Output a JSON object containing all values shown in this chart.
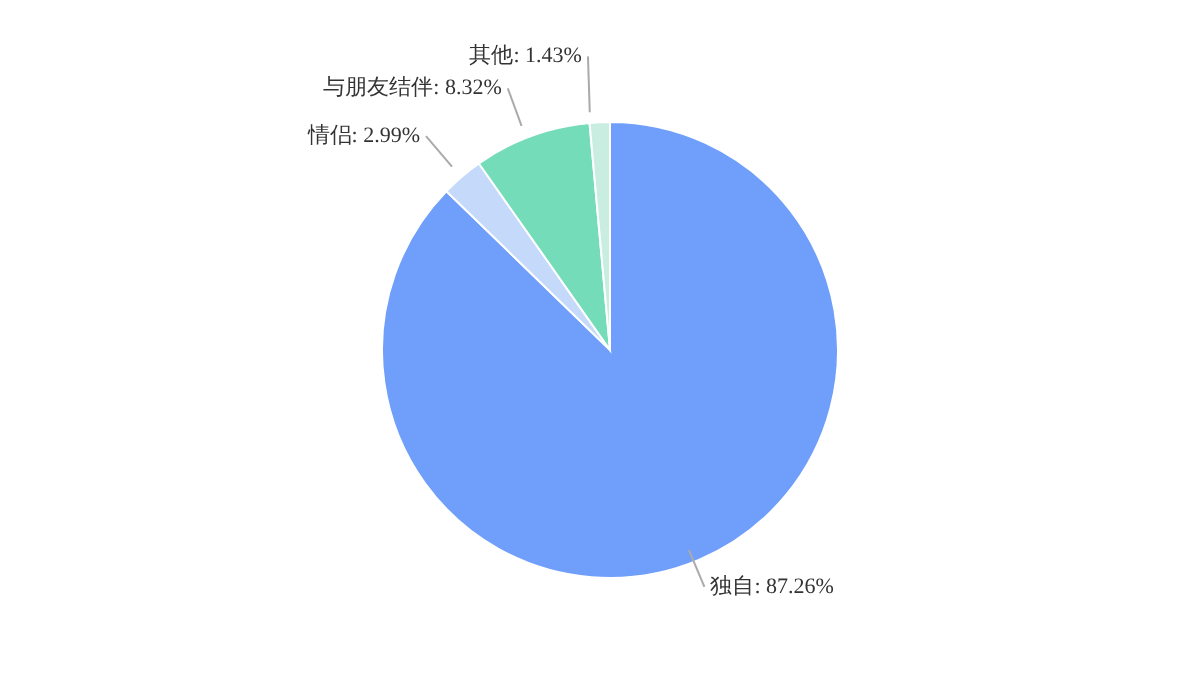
{
  "chart_data": {
    "type": "pie",
    "categories": [
      "独自",
      "情侣",
      "与朋友结伴",
      "其他"
    ],
    "values": [
      87.26,
      2.99,
      8.32,
      1.43
    ],
    "colors": [
      "#6f9ffa",
      "#c5d9fb",
      "#74dcb8",
      "#c9eee1"
    ],
    "value_labels": [
      "87.26%",
      "2.99%",
      "8.32%",
      "1.43%"
    ],
    "legend": false
  }
}
